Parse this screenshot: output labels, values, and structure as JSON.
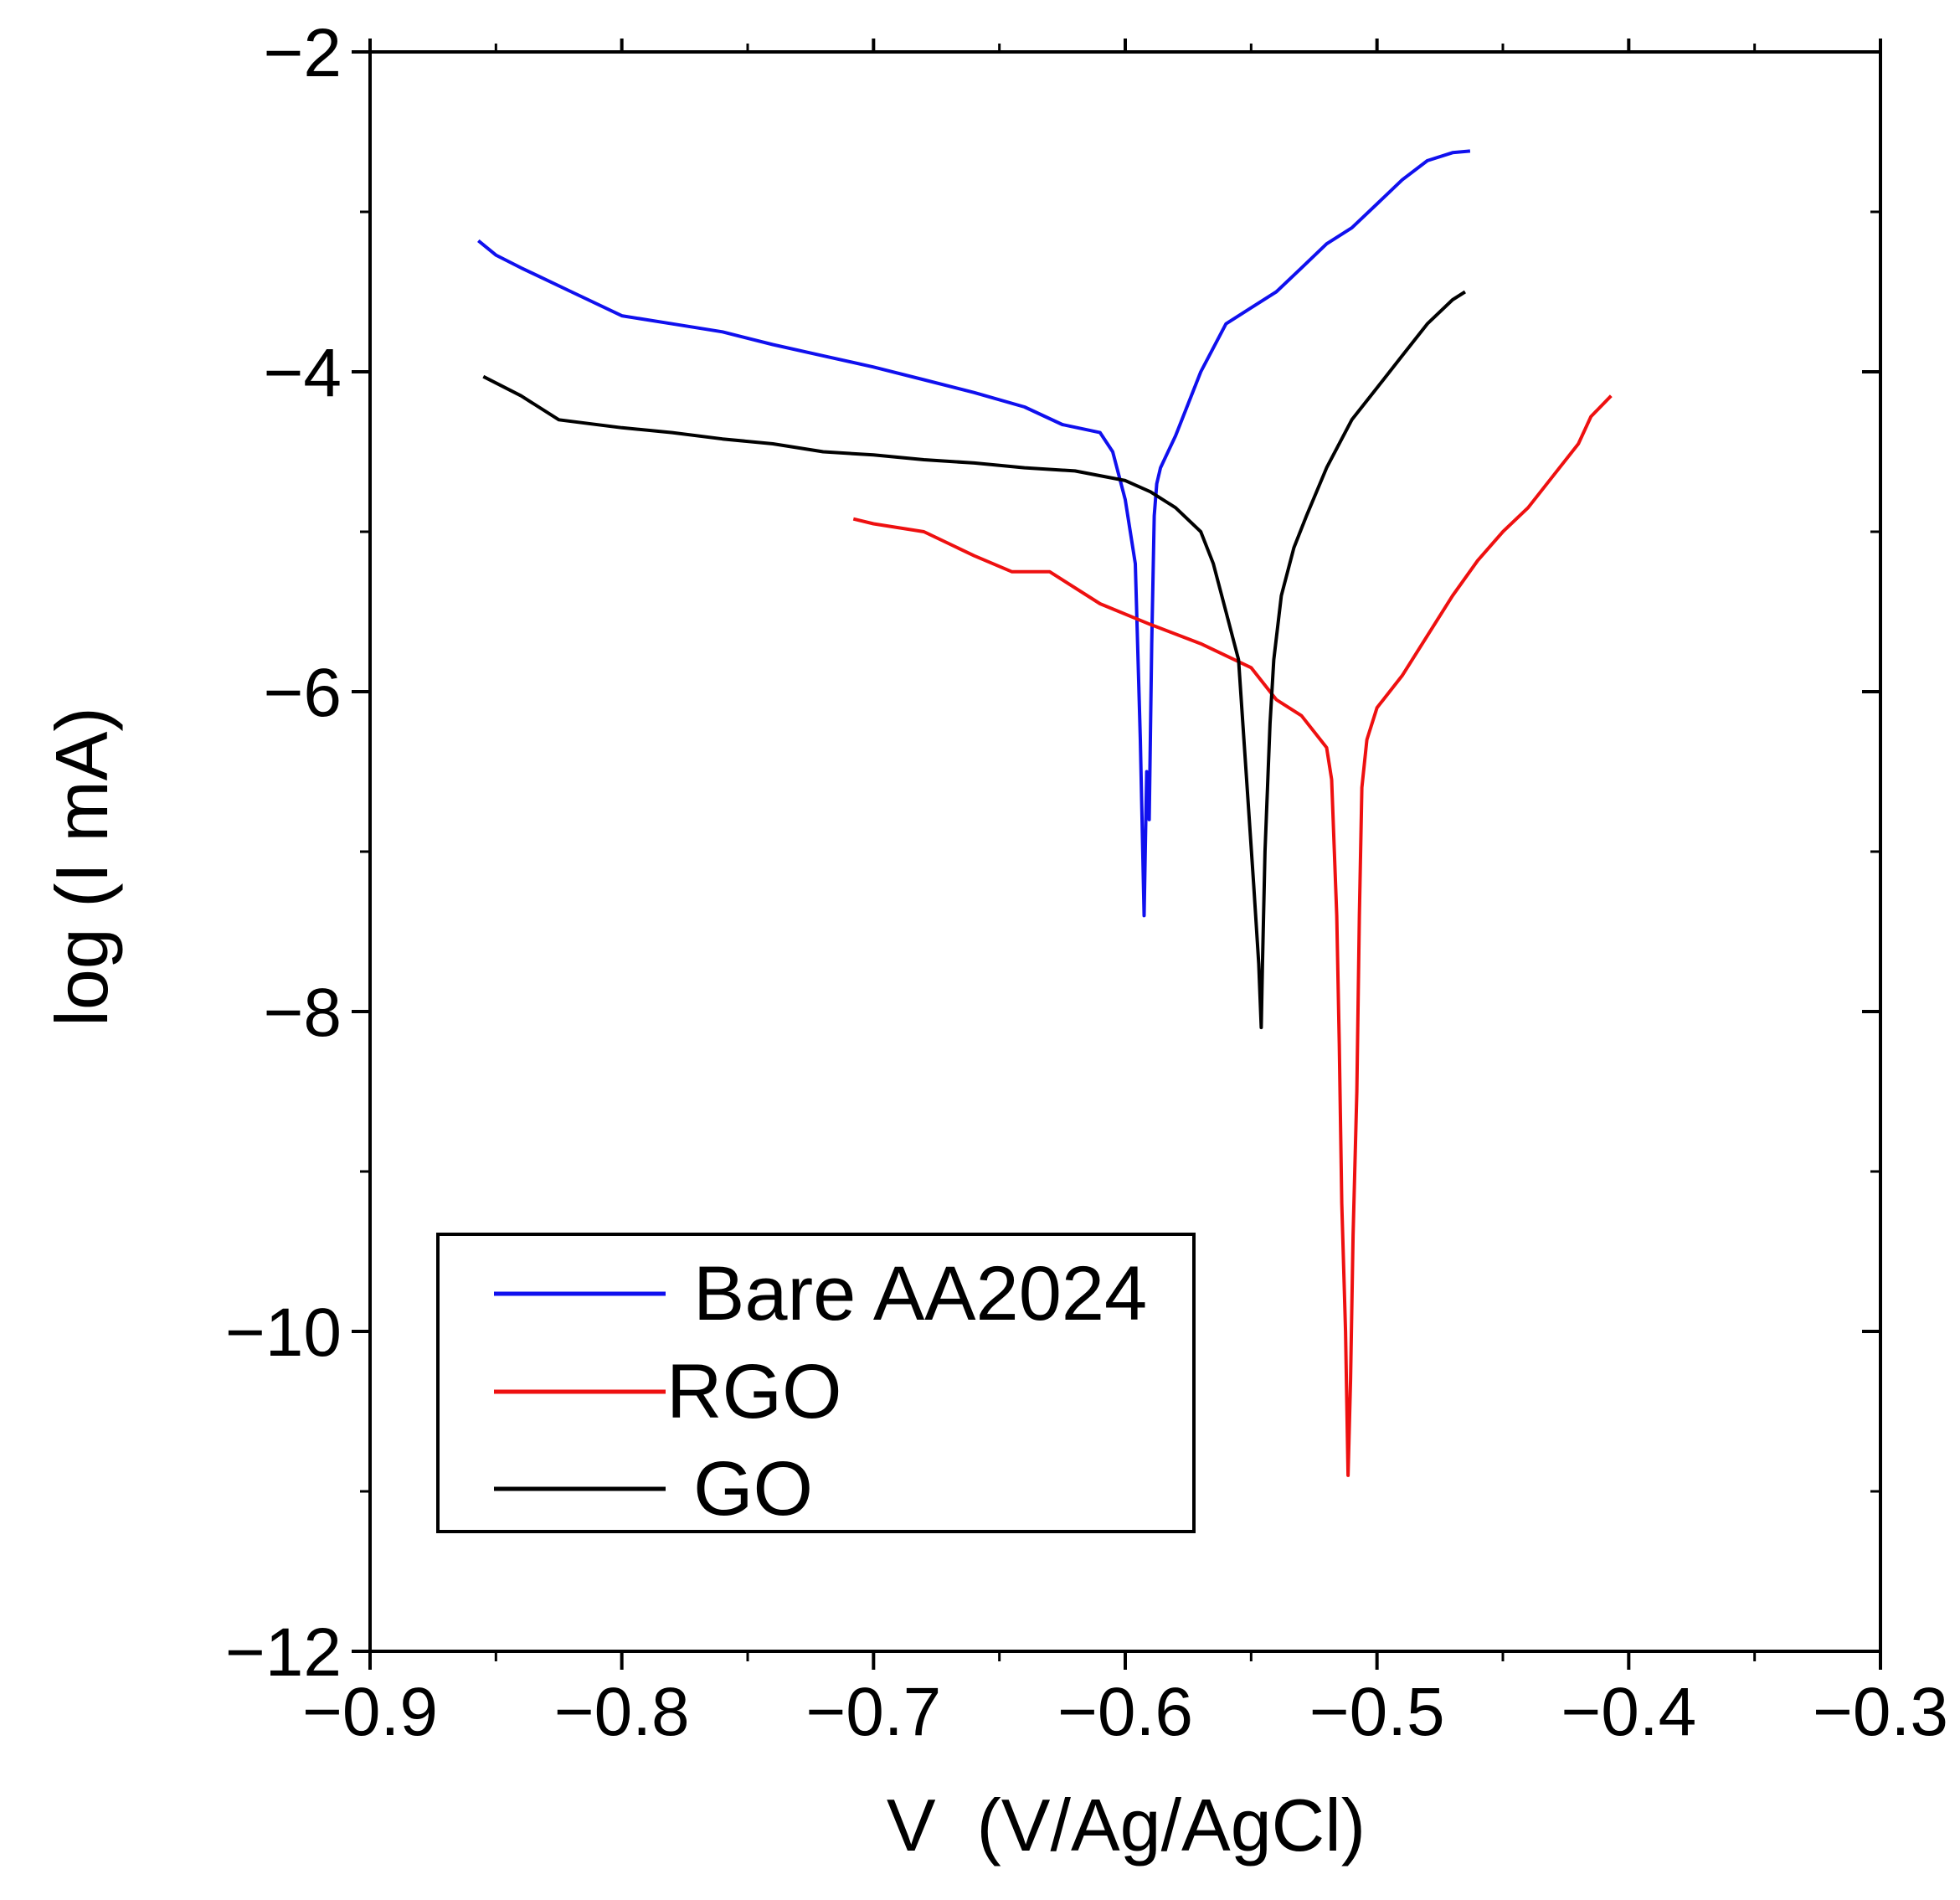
{
  "chart_data": {
    "type": "line",
    "title": "",
    "xlabel": "V  (V/Ag/AgCl)",
    "ylabel": "log (I mA)",
    "xlim": [
      -0.9,
      -0.3
    ],
    "ylim": [
      -12,
      -2
    ],
    "xticks": [
      -0.9,
      -0.8,
      -0.7,
      -0.6,
      -0.5,
      -0.4,
      -0.3
    ],
    "xtick_labels": [
      "−0.9",
      "−0.8",
      "−0.7",
      "−0.6",
      "−0.5",
      "−0.4",
      "−0.3"
    ],
    "yticks": [
      -2,
      -4,
      -6,
      -8,
      -10,
      -12
    ],
    "ytick_labels": [
      "−2",
      "−4",
      "−6",
      "−8",
      "−10",
      "−12"
    ],
    "grid": false,
    "legend": "bottom-left",
    "series": [
      {
        "name": "Bare AA2024",
        "color": "#1010ee",
        "x": [
          -0.857,
          -0.85,
          -0.84,
          -0.82,
          -0.8,
          -0.78,
          -0.76,
          -0.74,
          -0.72,
          -0.7,
          -0.68,
          -0.66,
          -0.64,
          -0.625,
          -0.61,
          -0.605,
          -0.6,
          -0.596,
          -0.594,
          -0.5925,
          -0.5915,
          -0.5905,
          -0.5895,
          -0.5885,
          -0.5875,
          -0.586,
          -0.58,
          -0.57,
          -0.56,
          -0.55,
          -0.54,
          -0.53,
          -0.52,
          -0.51,
          -0.5,
          -0.49,
          -0.48,
          -0.47,
          -0.463
        ],
        "y": [
          -3.18,
          -3.27,
          -3.35,
          -3.5,
          -3.65,
          -3.7,
          -3.75,
          -3.83,
          -3.9,
          -3.97,
          -4.05,
          -4.13,
          -4.22,
          -4.33,
          -4.38,
          -4.5,
          -4.8,
          -5.2,
          -6.3,
          -7.4,
          -6.5,
          -6.8,
          -5.7,
          -4.9,
          -4.7,
          -4.6,
          -4.4,
          -4.0,
          -3.7,
          -3.6,
          -3.5,
          -3.35,
          -3.2,
          -3.1,
          -2.95,
          -2.8,
          -2.68,
          -2.63,
          -2.62
        ]
      },
      {
        "name": "RGO",
        "color": "#ee1010",
        "x": [
          -0.708,
          -0.7,
          -0.68,
          -0.66,
          -0.645,
          -0.63,
          -0.61,
          -0.59,
          -0.57,
          -0.55,
          -0.54,
          -0.53,
          -0.52,
          -0.518,
          -0.516,
          -0.515,
          -0.514,
          -0.5125,
          -0.5115,
          -0.5105,
          -0.5095,
          -0.508,
          -0.507,
          -0.506,
          -0.504,
          -0.5,
          -0.49,
          -0.48,
          -0.47,
          -0.46,
          -0.45,
          -0.44,
          -0.43,
          -0.42,
          -0.415,
          -0.407
        ],
        "y": [
          -4.92,
          -4.95,
          -5.0,
          -5.15,
          -5.25,
          -5.25,
          -5.45,
          -5.58,
          -5.7,
          -5.85,
          -6.05,
          -6.15,
          -6.35,
          -6.55,
          -7.4,
          -8.2,
          -9.2,
          -10.0,
          -10.9,
          -10.3,
          -9.4,
          -8.5,
          -7.4,
          -6.6,
          -6.3,
          -6.1,
          -5.9,
          -5.65,
          -5.4,
          -5.18,
          -5.0,
          -4.85,
          -4.65,
          -4.45,
          -4.28,
          -4.15
        ]
      },
      {
        "name": "GO",
        "color": "#000000",
        "x": [
          -0.855,
          -0.84,
          -0.825,
          -0.8,
          -0.78,
          -0.76,
          -0.74,
          -0.72,
          -0.7,
          -0.68,
          -0.66,
          -0.64,
          -0.62,
          -0.6,
          -0.59,
          -0.58,
          -0.57,
          -0.565,
          -0.56,
          -0.555,
          -0.552,
          -0.549,
          -0.547,
          -0.546,
          -0.5455,
          -0.5445,
          -0.5435,
          -0.5425,
          -0.541,
          -0.538,
          -0.533,
          -0.528,
          -0.52,
          -0.51,
          -0.5,
          -0.49,
          -0.48,
          -0.47,
          -0.465
        ],
        "y": [
          -4.03,
          -4.15,
          -4.3,
          -4.35,
          -4.38,
          -4.42,
          -4.45,
          -4.5,
          -4.52,
          -4.55,
          -4.57,
          -4.6,
          -4.62,
          -4.68,
          -4.75,
          -4.85,
          -5.0,
          -5.2,
          -5.5,
          -5.8,
          -6.5,
          -7.2,
          -7.7,
          -8.1,
          -7.7,
          -7.0,
          -6.6,
          -6.2,
          -5.8,
          -5.4,
          -5.1,
          -4.9,
          -4.6,
          -4.3,
          -4.1,
          -3.9,
          -3.7,
          -3.55,
          -3.5
        ]
      }
    ]
  }
}
